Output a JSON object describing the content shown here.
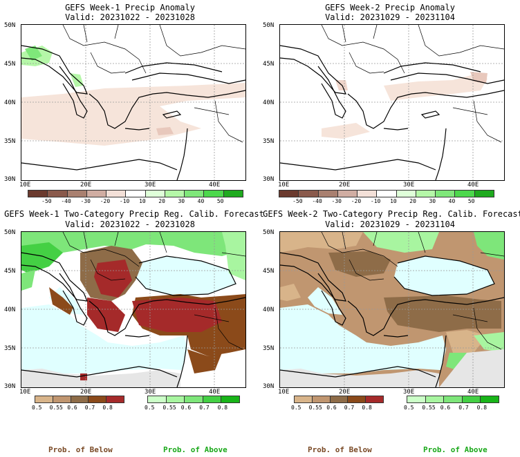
{
  "panels": [
    {
      "title": "GEFS Week-1 Precip Anomaly",
      "valid": "Valid: 20231022 - 20231028"
    },
    {
      "title": "GEFS Week-2 Precip Anomaly",
      "valid": "Valid: 20231029 - 20231104"
    },
    {
      "title": "GEFS Week-1 Two-Category Precip Reg. Calib. Forecast",
      "valid": "Valid: 20231022 - 20231028"
    },
    {
      "title": "GEFS Week-2 Two-Category Precip Reg. Calib. Forecast",
      "valid": "Valid: 20231029 - 20231104"
    }
  ],
  "axes": {
    "lat": [
      "50N",
      "45N",
      "40N",
      "35N",
      "30N"
    ],
    "lon": [
      "10E",
      "20E",
      "30E",
      "40E"
    ]
  },
  "anomaly_colorbar": {
    "labels": [
      "-50",
      "-40",
      "-30",
      "-20",
      "-10",
      "10",
      "20",
      "30",
      "40",
      "50"
    ],
    "colors": [
      "#6b3a2e",
      "#8a5a4c",
      "#a98070",
      "#d0ada2",
      "#f3e0d8",
      "#ffffff",
      "#dfffd9",
      "#b5f7a8",
      "#7fe77a",
      "#4cd84c",
      "#1faa1f"
    ]
  },
  "prob_colorbars": {
    "below": {
      "labels": [
        "0.5",
        "0.55",
        "0.6",
        "0.7",
        "0.8"
      ],
      "colors": [
        "#d8b48a",
        "#c09670",
        "#8e6c48",
        "#8b4a1a",
        "#a52a2a"
      ]
    },
    "above": {
      "labels": [
        "0.5",
        "0.55",
        "0.6",
        "0.7",
        "0.8"
      ],
      "colors": [
        "#ccffc8",
        "#a8f5a0",
        "#7ee67a",
        "#44d044",
        "#18b418"
      ]
    }
  },
  "footer": {
    "below": "Prob. of Below",
    "above": "Prob. of Above"
  },
  "colors": {
    "sea": "#e0ffff",
    "land_bg": "#ffffff",
    "grey": "#e6e6e6"
  }
}
